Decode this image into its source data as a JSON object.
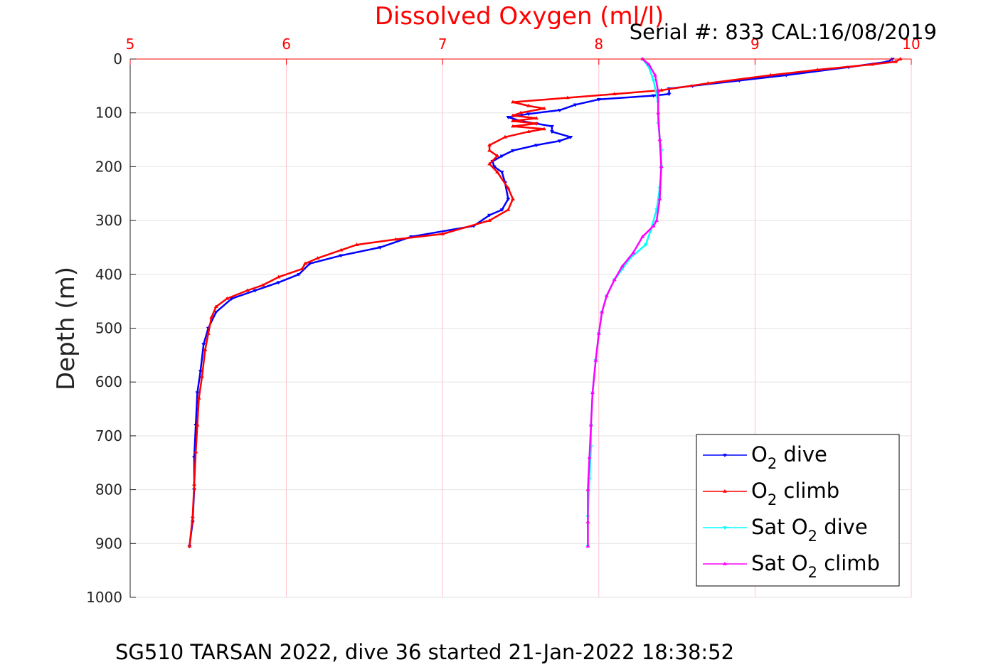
{
  "chart_data": {
    "type": "line",
    "title": "Dissolved Oxygen (ml/l)",
    "annotation": "Serial #: 833  CAL:16/08/2019",
    "caption": "SG510 TARSAN 2022, dive 36 started 21-Jan-2022 18:38:52",
    "ylabel": "Depth (m)",
    "xlabel": "",
    "xlim": [
      5,
      10
    ],
    "ylim": [
      0,
      1000
    ],
    "y_reversed": true,
    "x_axis_position": "top",
    "x_ticks": [
      "5",
      "6",
      "7",
      "8",
      "9",
      "10"
    ],
    "y_ticks": [
      "0",
      "100",
      "200",
      "300",
      "400",
      "500",
      "600",
      "700",
      "800",
      "900",
      "1000"
    ],
    "grid": true,
    "legend_position": "bottom-right",
    "series": [
      {
        "name": "O2 dive",
        "legend_main": "O",
        "legend_sub": "2",
        "legend_rest": " dive",
        "color": "#0000ff",
        "marker": "triangle-down",
        "points": [
          [
            9.88,
            0
          ],
          [
            9.85,
            5
          ],
          [
            9.6,
            15
          ],
          [
            9.2,
            30
          ],
          [
            8.9,
            40
          ],
          [
            8.6,
            50
          ],
          [
            8.45,
            55
          ],
          [
            8.45,
            65
          ],
          [
            8.35,
            68
          ],
          [
            8.0,
            75
          ],
          [
            7.85,
            85
          ],
          [
            7.75,
            95
          ],
          [
            7.55,
            102
          ],
          [
            7.42,
            108
          ],
          [
            7.5,
            115
          ],
          [
            7.6,
            120
          ],
          [
            7.7,
            125
          ],
          [
            7.7,
            135
          ],
          [
            7.82,
            145
          ],
          [
            7.75,
            152
          ],
          [
            7.6,
            160
          ],
          [
            7.45,
            170
          ],
          [
            7.38,
            180
          ],
          [
            7.32,
            190
          ],
          [
            7.33,
            200
          ],
          [
            7.38,
            210
          ],
          [
            7.4,
            230
          ],
          [
            7.42,
            260
          ],
          [
            7.38,
            280
          ],
          [
            7.3,
            290
          ],
          [
            7.2,
            310
          ],
          [
            6.8,
            330
          ],
          [
            6.6,
            350
          ],
          [
            6.35,
            365
          ],
          [
            6.15,
            380
          ],
          [
            6.08,
            400
          ],
          [
            5.95,
            415
          ],
          [
            5.8,
            430
          ],
          [
            5.65,
            445
          ],
          [
            5.55,
            470
          ],
          [
            5.5,
            500
          ],
          [
            5.47,
            530
          ],
          [
            5.45,
            580
          ],
          [
            5.43,
            620
          ],
          [
            5.42,
            680
          ],
          [
            5.41,
            740
          ],
          [
            5.41,
            800
          ],
          [
            5.4,
            860
          ],
          [
            5.38,
            905
          ]
        ]
      },
      {
        "name": "O2 climb",
        "legend_main": "O",
        "legend_sub": "2",
        "legend_rest": " climb",
        "color": "#ff0000",
        "marker": "triangle-up",
        "points": [
          [
            9.93,
            0
          ],
          [
            9.9,
            5
          ],
          [
            9.75,
            10
          ],
          [
            9.4,
            20
          ],
          [
            9.1,
            30
          ],
          [
            8.7,
            45
          ],
          [
            8.4,
            58
          ],
          [
            8.1,
            65
          ],
          [
            7.8,
            72
          ],
          [
            7.45,
            80
          ],
          [
            7.55,
            87
          ],
          [
            7.65,
            92
          ],
          [
            7.5,
            100
          ],
          [
            7.45,
            105
          ],
          [
            7.6,
            110
          ],
          [
            7.45,
            115
          ],
          [
            7.6,
            120
          ],
          [
            7.45,
            125
          ],
          [
            7.65,
            130
          ],
          [
            7.55,
            135
          ],
          [
            7.4,
            145
          ],
          [
            7.3,
            160
          ],
          [
            7.3,
            170
          ],
          [
            7.35,
            180
          ],
          [
            7.3,
            195
          ],
          [
            7.35,
            210
          ],
          [
            7.42,
            240
          ],
          [
            7.45,
            260
          ],
          [
            7.42,
            280
          ],
          [
            7.3,
            300
          ],
          [
            7.0,
            325
          ],
          [
            6.7,
            335
          ],
          [
            6.45,
            345
          ],
          [
            6.35,
            355
          ],
          [
            6.2,
            370
          ],
          [
            6.12,
            380
          ],
          [
            6.1,
            390
          ],
          [
            5.95,
            405
          ],
          [
            5.85,
            420
          ],
          [
            5.75,
            430
          ],
          [
            5.62,
            445
          ],
          [
            5.55,
            460
          ],
          [
            5.52,
            480
          ],
          [
            5.5,
            510
          ],
          [
            5.48,
            540
          ],
          [
            5.46,
            590
          ],
          [
            5.44,
            630
          ],
          [
            5.43,
            680
          ],
          [
            5.42,
            730
          ],
          [
            5.41,
            790
          ],
          [
            5.4,
            850
          ],
          [
            5.38,
            905
          ]
        ]
      },
      {
        "name": "Sat O2 dive",
        "legend_main": "Sat O",
        "legend_sub": "2",
        "legend_rest": " dive",
        "color": "#00ffff",
        "marker": "triangle-down",
        "points": [
          [
            8.28,
            0
          ],
          [
            8.32,
            15
          ],
          [
            8.35,
            40
          ],
          [
            8.38,
            80
          ],
          [
            8.38,
            120
          ],
          [
            8.4,
            170
          ],
          [
            8.4,
            200
          ],
          [
            8.39,
            240
          ],
          [
            8.37,
            280
          ],
          [
            8.33,
            320
          ],
          [
            8.3,
            345
          ],
          [
            8.2,
            370
          ],
          [
            8.15,
            390
          ],
          [
            8.1,
            410
          ],
          [
            8.05,
            440
          ],
          [
            8.02,
            470
          ],
          [
            8.0,
            510
          ],
          [
            7.98,
            560
          ],
          [
            7.96,
            620
          ],
          [
            7.95,
            680
          ],
          [
            7.95,
            720
          ],
          [
            7.94,
            780
          ],
          [
            7.93,
            850
          ],
          [
            7.93,
            905
          ]
        ]
      },
      {
        "name": "Sat O2 climb",
        "legend_main": "Sat O",
        "legend_sub": "2",
        "legend_rest": " climb",
        "color": "#ff00ff",
        "marker": "triangle-up",
        "points": [
          [
            8.28,
            0
          ],
          [
            8.32,
            10
          ],
          [
            8.36,
            30
          ],
          [
            8.38,
            60
          ],
          [
            8.38,
            100
          ],
          [
            8.39,
            150
          ],
          [
            8.4,
            200
          ],
          [
            8.39,
            260
          ],
          [
            8.37,
            300
          ],
          [
            8.35,
            310
          ],
          [
            8.28,
            330
          ],
          [
            8.22,
            360
          ],
          [
            8.15,
            385
          ],
          [
            8.1,
            410
          ],
          [
            8.05,
            440
          ],
          [
            8.02,
            470
          ],
          [
            8.0,
            510
          ],
          [
            7.98,
            560
          ],
          [
            7.96,
            620
          ],
          [
            7.95,
            680
          ],
          [
            7.94,
            740
          ],
          [
            7.93,
            800
          ],
          [
            7.93,
            860
          ],
          [
            7.93,
            905
          ]
        ]
      }
    ]
  }
}
